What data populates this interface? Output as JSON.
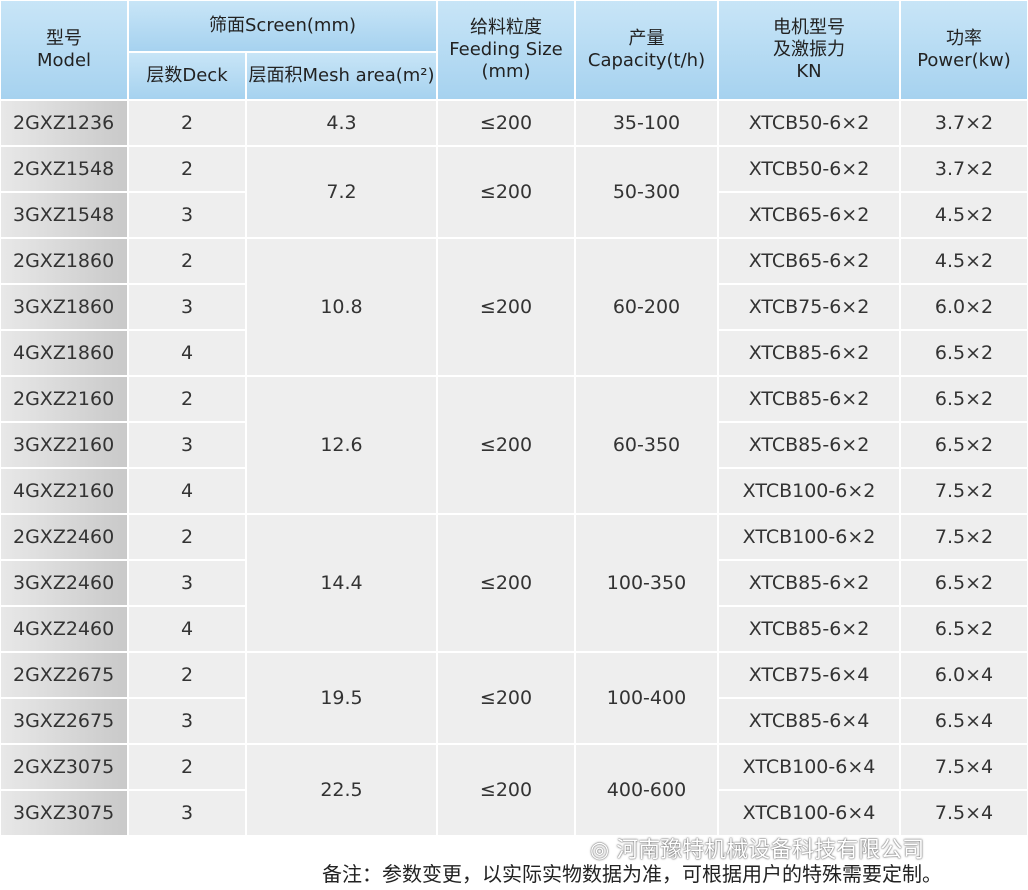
{
  "header": {
    "model": [
      "型号",
      "Model"
    ],
    "screen": "筛面Screen(mm)",
    "deck": "层数Deck",
    "mesh_area": "层面积Mesh area(m²)",
    "feeding": [
      "给料粒度",
      "Feeding Size",
      "(mm)"
    ],
    "capacity": [
      "产量",
      "Capacity(t/h)"
    ],
    "motor": [
      "电机型号",
      "及激振力",
      "KN"
    ],
    "power": [
      "功率",
      "Power(kw)"
    ]
  },
  "table": {
    "groups": [
      {
        "mesh": "4.3",
        "feeding": "≤200",
        "capacity": "35-100",
        "rows": [
          {
            "model": "2GXZ1236",
            "deck": "2",
            "motor": "XTCB50-6×2",
            "power": "3.7×2"
          }
        ]
      },
      {
        "mesh": "7.2",
        "feeding": "≤200",
        "capacity": "50-300",
        "rows": [
          {
            "model": "2GXZ1548",
            "deck": "2",
            "motor": "XTCB50-6×2",
            "power": "3.7×2"
          },
          {
            "model": "3GXZ1548",
            "deck": "3",
            "motor": "XTCB65-6×2",
            "power": "4.5×2"
          }
        ]
      },
      {
        "mesh": "10.8",
        "feeding": "≤200",
        "capacity": "60-200",
        "rows": [
          {
            "model": "2GXZ1860",
            "deck": "2",
            "motor": "XTCB65-6×2",
            "power": "4.5×2"
          },
          {
            "model": "3GXZ1860",
            "deck": "3",
            "motor": "XTCB75-6×2",
            "power": "6.0×2"
          },
          {
            "model": "4GXZ1860",
            "deck": "4",
            "motor": "XTCB85-6×2",
            "power": "6.5×2"
          }
        ]
      },
      {
        "mesh": "12.6",
        "feeding": "≤200",
        "capacity": "60-350",
        "rows": [
          {
            "model": "2GXZ2160",
            "deck": "2",
            "motor": "XTCB85-6×2",
            "power": "6.5×2"
          },
          {
            "model": "3GXZ2160",
            "deck": "3",
            "motor": "XTCB85-6×2",
            "power": "6.5×2"
          },
          {
            "model": "4GXZ2160",
            "deck": "4",
            "motor": "XTCB100-6×2",
            "power": "7.5×2"
          }
        ]
      },
      {
        "mesh": "14.4",
        "feeding": "≤200",
        "capacity": "100-350",
        "rows": [
          {
            "model": "2GXZ2460",
            "deck": "2",
            "motor": "XTCB100-6×2",
            "power": "7.5×2"
          },
          {
            "model": "3GXZ2460",
            "deck": "3",
            "motor": "XTCB85-6×2",
            "power": "6.5×2"
          },
          {
            "model": "4GXZ2460",
            "deck": "4",
            "motor": "XTCB85-6×2",
            "power": "6.5×2"
          }
        ]
      },
      {
        "mesh": "19.5",
        "feeding": "≤200",
        "capacity": "100-400",
        "rows": [
          {
            "model": "2GXZ2675",
            "deck": "2",
            "motor": "XTCB75-6×4",
            "power": "6.0×4"
          },
          {
            "model": "3GXZ2675",
            "deck": "3",
            "motor": "XTCB85-6×4",
            "power": "6.5×4"
          }
        ]
      },
      {
        "mesh": "22.5",
        "feeding": "≤200",
        "capacity": "400-600",
        "rows": [
          {
            "model": "2GXZ3075",
            "deck": "2",
            "motor": "XTCB100-6×4",
            "power": "7.5×4"
          },
          {
            "model": "3GXZ3075",
            "deck": "3",
            "motor": "XTCB100-6×4",
            "power": "7.5×4"
          }
        ]
      }
    ]
  },
  "watermark": "河南豫特机械设备科技有限公司",
  "note": "备注：参数变更，以实际实物数据为准，可根据用户的特殊需要定制。"
}
